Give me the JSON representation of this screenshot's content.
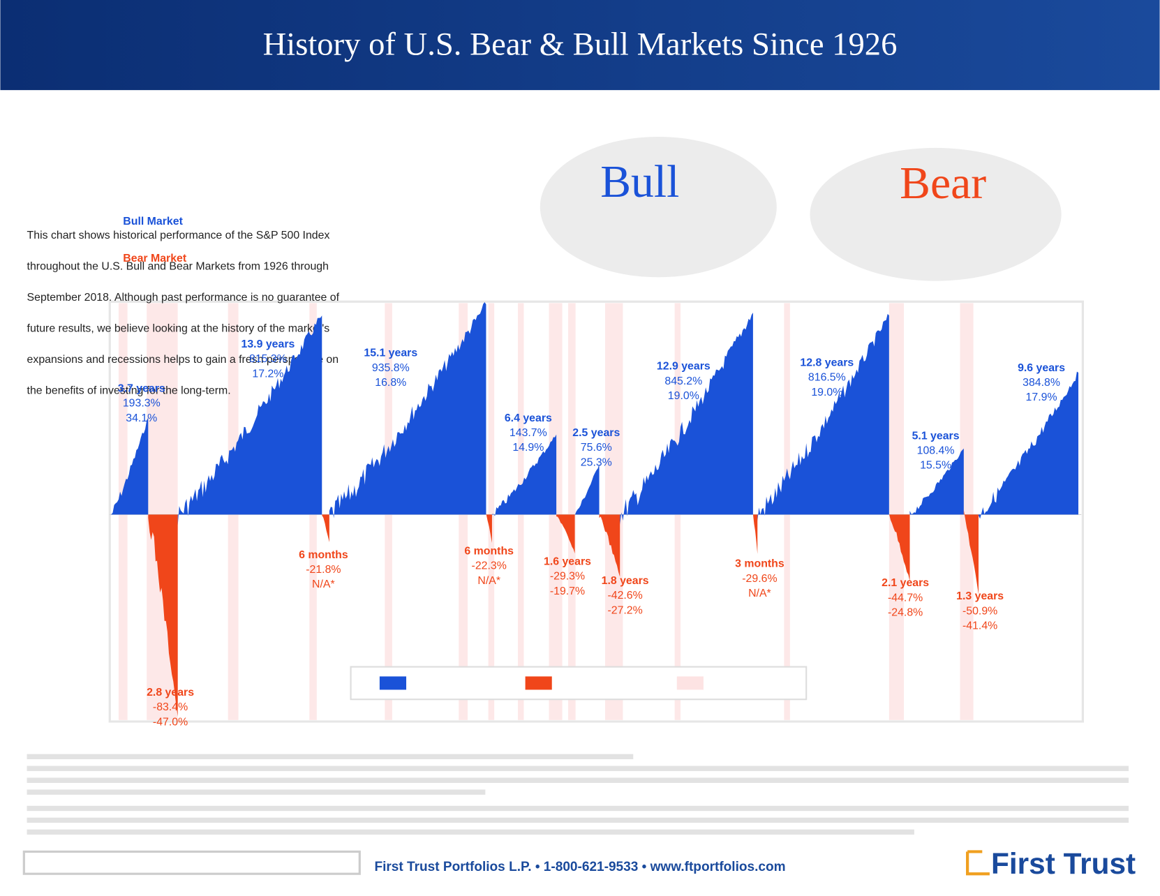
{
  "chart_data": {
    "type": "bull-bear",
    "title": "History of U.S. Bear & Bull Markets Since 1926",
    "bull_word": "Bull",
    "bear_word": "Bear",
    "bull_color": "#1a52d8",
    "bear_color": "#f0461a",
    "bull_markets": [
      {
        "duration": "3.7 years",
        "cumulative": 193.3,
        "cumulative_label": "193.3%",
        "annualized": 34.1,
        "annualized_label": "34.1%"
      },
      {
        "duration": "13.9 years",
        "cumulative": 815.3,
        "cumulative_label": "815.3%",
        "annualized": 17.2,
        "annualized_label": "17.2%"
      },
      {
        "duration": "15.1 years",
        "cumulative": 935.8,
        "cumulative_label": "935.8%",
        "annualized": 16.8,
        "annualized_label": "16.8%"
      },
      {
        "duration": "6.4 years",
        "cumulative": 143.7,
        "cumulative_label": "143.7%",
        "annualized": 14.9,
        "annualized_label": "14.9%"
      },
      {
        "duration": "2.5 years",
        "cumulative": 75.6,
        "cumulative_label": "75.6%",
        "annualized": 25.3,
        "annualized_label": "25.3%"
      },
      {
        "duration": "12.9 years",
        "cumulative": 845.2,
        "cumulative_label": "845.2%",
        "annualized": 19.0,
        "annualized_label": "19.0%"
      },
      {
        "duration": "12.8 years",
        "cumulative": 816.5,
        "cumulative_label": "816.5%",
        "annualized": 19.0,
        "annualized_label": "19.0%"
      },
      {
        "duration": "5.1 years",
        "cumulative": 108.4,
        "cumulative_label": "108.4%",
        "annualized": 15.5,
        "annualized_label": "15.5%"
      },
      {
        "duration": "9.6 years",
        "cumulative": 384.8,
        "cumulative_label": "384.8%",
        "annualized": 17.9,
        "annualized_label": "17.9%"
      }
    ],
    "bear_markets": [
      {
        "duration": "2.8 years",
        "cumulative": -83.4,
        "cumulative_label": "-83.4%",
        "annualized": -47.0,
        "annualized_label": "-47.0%"
      },
      {
        "duration": "6 months",
        "cumulative": -21.8,
        "cumulative_label": "-21.8%",
        "annualized": null,
        "annualized_label": "N/A*"
      },
      {
        "duration": "6 months",
        "cumulative": -22.3,
        "cumulative_label": "-22.3%",
        "annualized": null,
        "annualized_label": "N/A*"
      },
      {
        "duration": "1.6 years",
        "cumulative": -29.3,
        "cumulative_label": "-29.3%",
        "annualized": -19.7,
        "annualized_label": "-19.7%"
      },
      {
        "duration": "1.8 years",
        "cumulative": -42.6,
        "cumulative_label": "-42.6%",
        "annualized": -27.2,
        "annualized_label": "-27.2%"
      },
      {
        "duration": "3 months",
        "cumulative": -29.6,
        "cumulative_label": "-29.6%",
        "annualized": null,
        "annualized_label": "N/A*"
      },
      {
        "duration": "2.1 years",
        "cumulative": -44.7,
        "cumulative_label": "-44.7%",
        "annualized": -24.8,
        "annualized_label": "-24.8%"
      },
      {
        "duration": "1.3 years",
        "cumulative": -50.9,
        "cumulative_label": "-50.9%",
        "annualized": -41.4,
        "annualized_label": "-41.4%"
      }
    ]
  },
  "intro": {
    "bull_heading": "Bull Market",
    "bear_heading": "Bear Market",
    "lines": [
      "This chart shows historical performance of the S&P 500 Index",
      "throughout the U.S. Bull and Bear Markets from 1926 through",
      "September 2018. Although past performance is no guarantee of",
      "future results, we believe looking at the history of the market's",
      "expansions and recessions helps to gain a fresh perspective on",
      "the benefits of investing for the long-term."
    ]
  },
  "footer": {
    "contact": "First Trust Portfolios L.P. • 1-800-621-9533 • www.ftportfolios.com",
    "logo": "First Trust"
  }
}
